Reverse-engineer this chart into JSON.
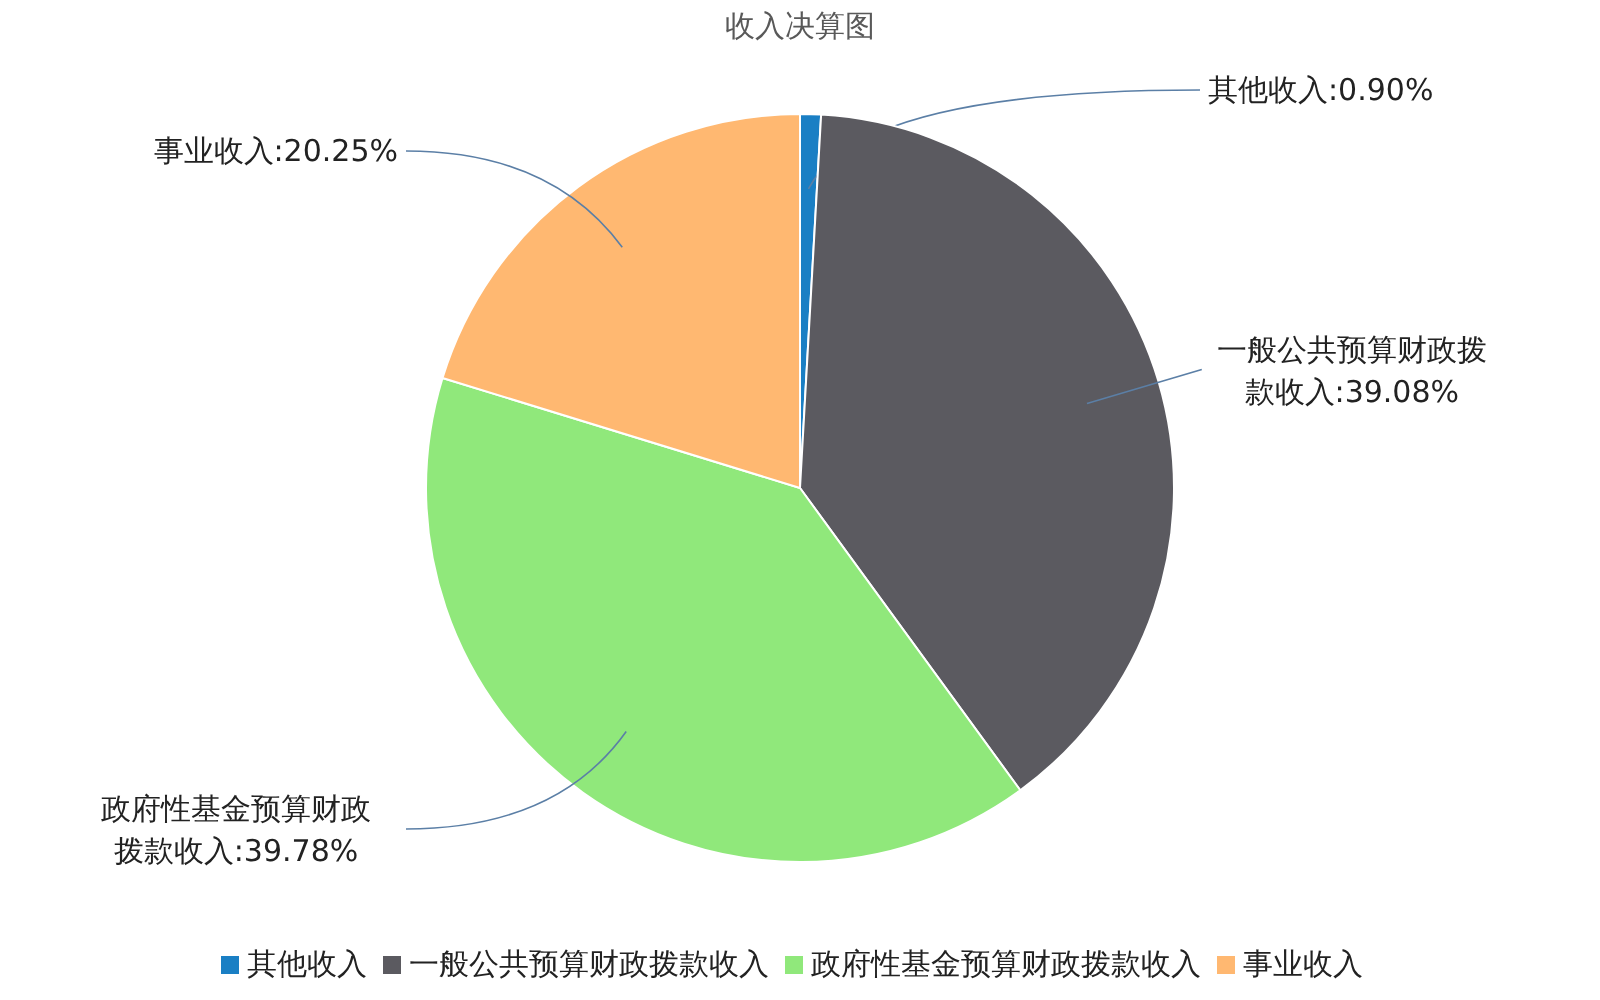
{
  "chart_data": {
    "type": "pie",
    "title": "收入决算图",
    "categories": [
      "其他收入",
      "一般公共预算财政拨款收入",
      "政府性基金预算财政拨款收入",
      "事业收入"
    ],
    "values": [
      0.9,
      39.08,
      39.78,
      20.25
    ],
    "value_labels": [
      "其他收入:0.90%",
      "一般公共预算财政拨款收入:39.08%",
      "政府性基金预算财政拨款收入:39.78%",
      "事业收入:20.25%"
    ],
    "colors": [
      "#1a7fc4",
      "#5b5a60",
      "#90e87b",
      "#ffb871"
    ],
    "legend": "bottom"
  }
}
